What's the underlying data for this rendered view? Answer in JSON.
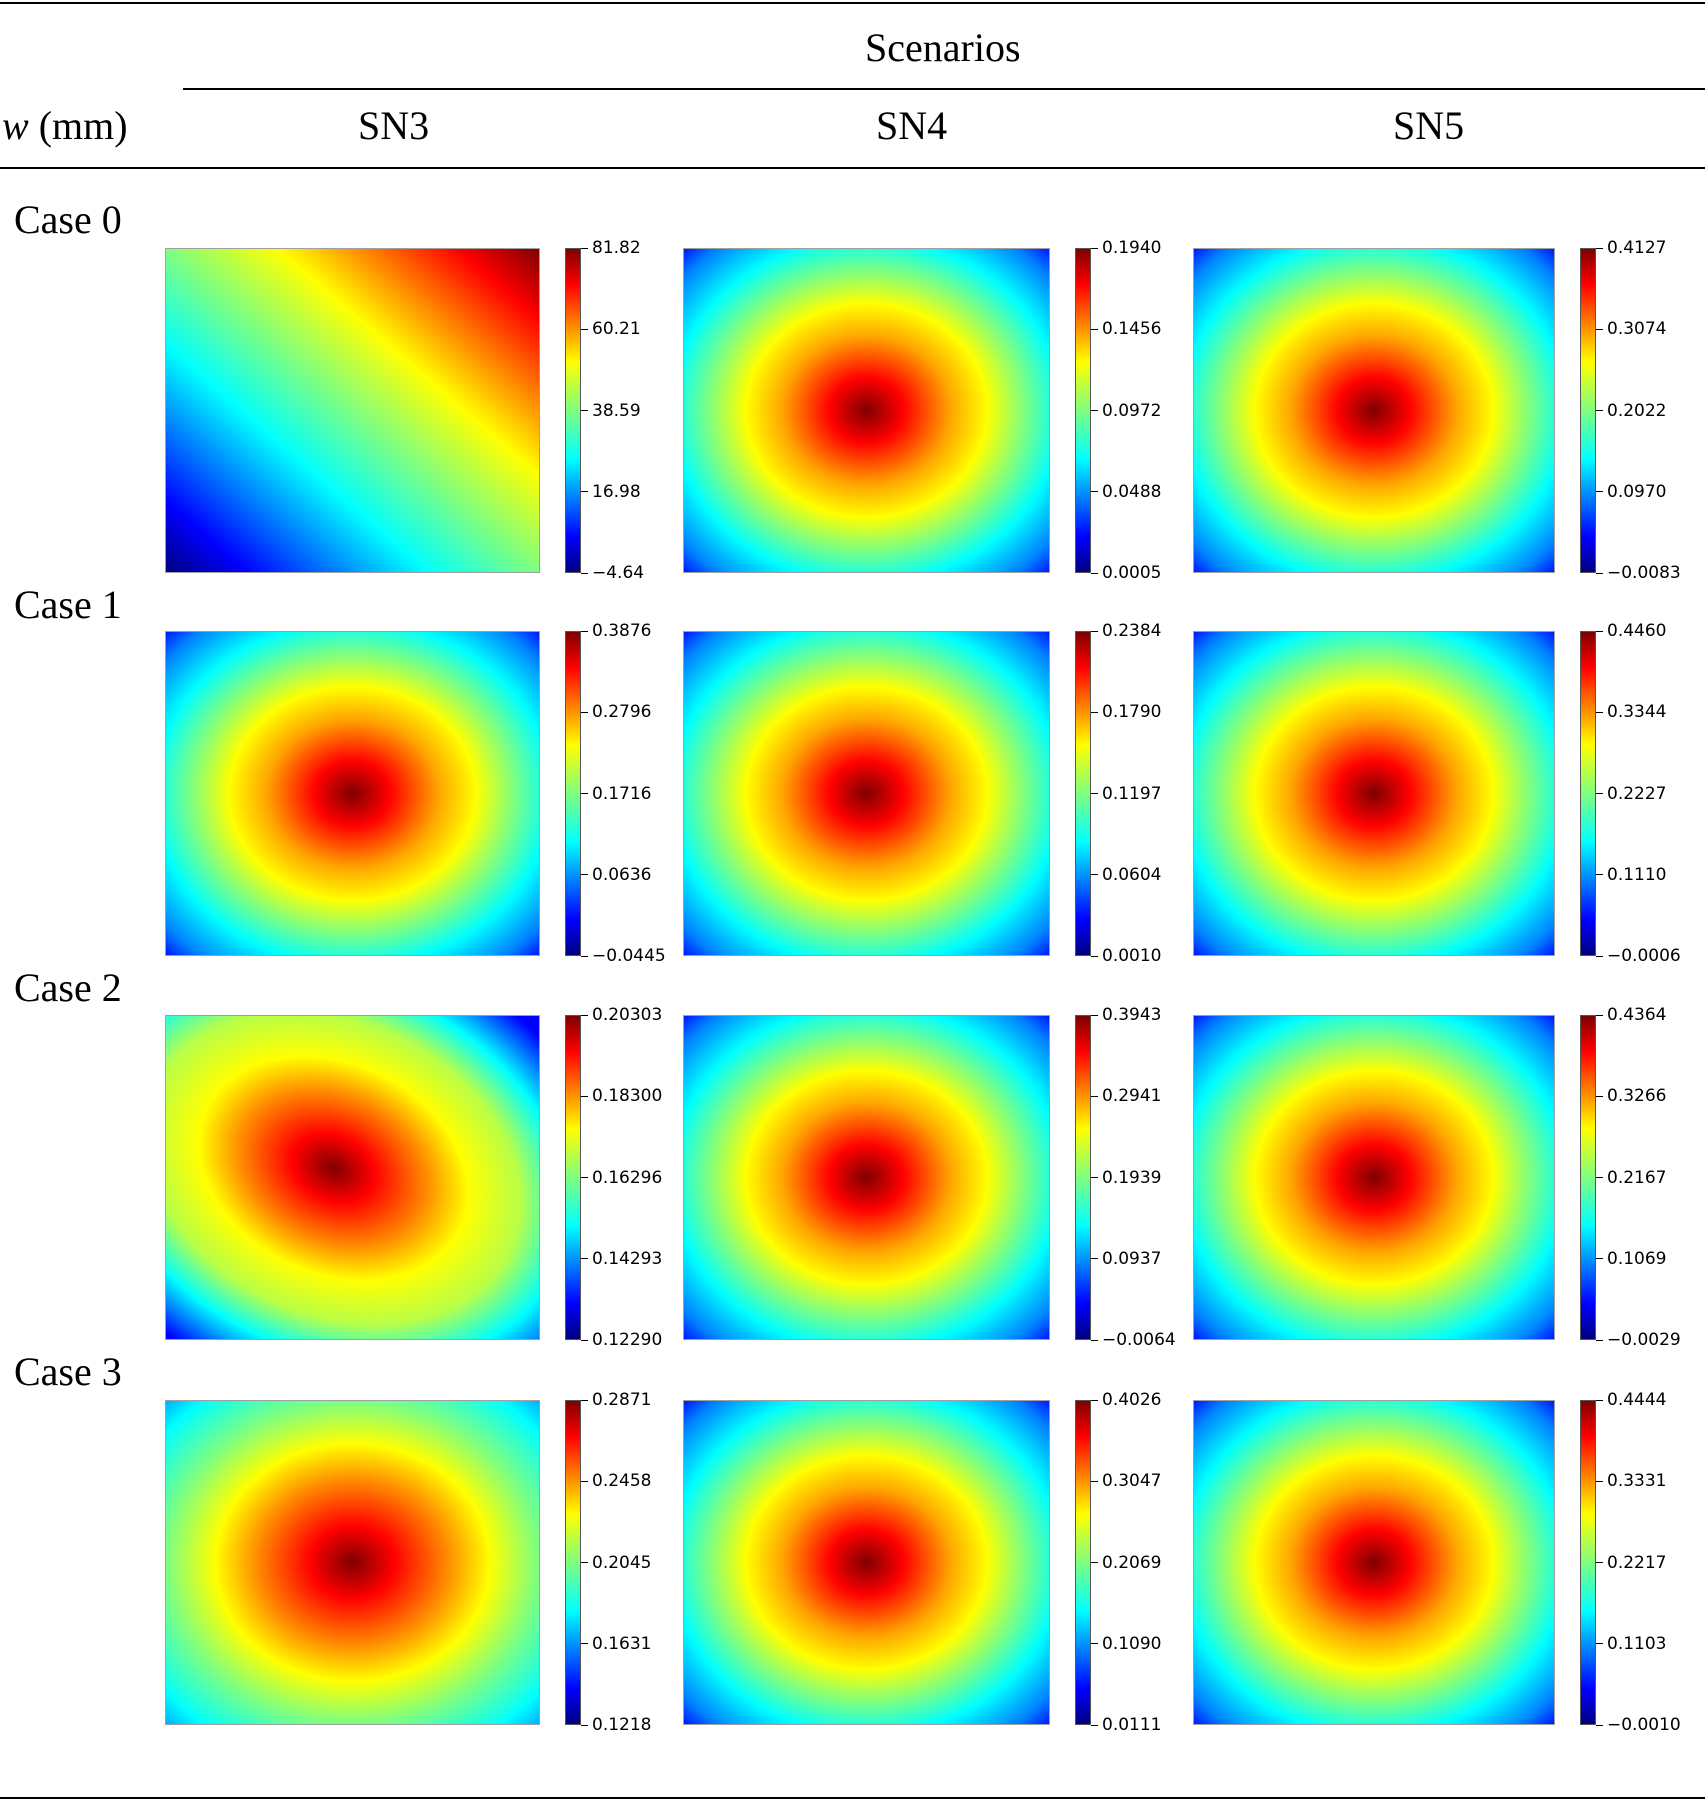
{
  "header": {
    "row_label": "w (mm)",
    "group_label": "Scenarios",
    "scenarios": [
      "SN3",
      "SN4",
      "SN5"
    ]
  },
  "colormap": "jet",
  "cases": [
    {
      "label": "Case 0",
      "panels": [
        {
          "scenario": "SN3",
          "pattern": "linear-gradient",
          "ticks": [
            "81.82",
            "60.21",
            "38.59",
            "16.98",
            "−4.64"
          ]
        },
        {
          "scenario": "SN4",
          "pattern": "center-peak",
          "ticks": [
            "0.1940",
            "0.1456",
            "0.0972",
            "0.0488",
            "0.0005"
          ]
        },
        {
          "scenario": "SN5",
          "pattern": "center-peak",
          "ticks": [
            "0.4127",
            "0.3074",
            "0.2022",
            "0.0970",
            "−0.0083"
          ]
        }
      ]
    },
    {
      "label": "Case 1",
      "panels": [
        {
          "scenario": "SN3",
          "pattern": "center-peak",
          "ticks": [
            "0.3876",
            "0.2796",
            "0.1716",
            "0.0636",
            "−0.0445"
          ]
        },
        {
          "scenario": "SN4",
          "pattern": "center-peak",
          "ticks": [
            "0.2384",
            "0.1790",
            "0.1197",
            "0.0604",
            "0.0010"
          ]
        },
        {
          "scenario": "SN5",
          "pattern": "center-peak",
          "ticks": [
            "0.4460",
            "0.3344",
            "0.2227",
            "0.1110",
            "−0.0006"
          ]
        }
      ]
    },
    {
      "label": "Case 2",
      "panels": [
        {
          "scenario": "SN3",
          "pattern": "diagonal-peak",
          "ticks": [
            "0.20303",
            "0.18300",
            "0.16296",
            "0.14293",
            "0.12290"
          ]
        },
        {
          "scenario": "SN4",
          "pattern": "center-peak",
          "ticks": [
            "0.3943",
            "0.2941",
            "0.1939",
            "0.0937",
            "−0.0064"
          ]
        },
        {
          "scenario": "SN5",
          "pattern": "center-peak",
          "ticks": [
            "0.4364",
            "0.3266",
            "0.2167",
            "0.1069",
            "−0.0029"
          ]
        }
      ]
    },
    {
      "label": "Case 3",
      "panels": [
        {
          "scenario": "SN3",
          "pattern": "center-peak-soft",
          "ticks": [
            "0.2871",
            "0.2458",
            "0.2045",
            "0.1631",
            "0.1218"
          ]
        },
        {
          "scenario": "SN4",
          "pattern": "center-peak",
          "ticks": [
            "0.4026",
            "0.3047",
            "0.2069",
            "0.1090",
            "0.0111"
          ]
        },
        {
          "scenario": "SN5",
          "pattern": "center-peak",
          "ticks": [
            "0.4444",
            "0.3331",
            "0.2217",
            "0.1103",
            "−0.0010"
          ]
        }
      ]
    }
  ]
}
